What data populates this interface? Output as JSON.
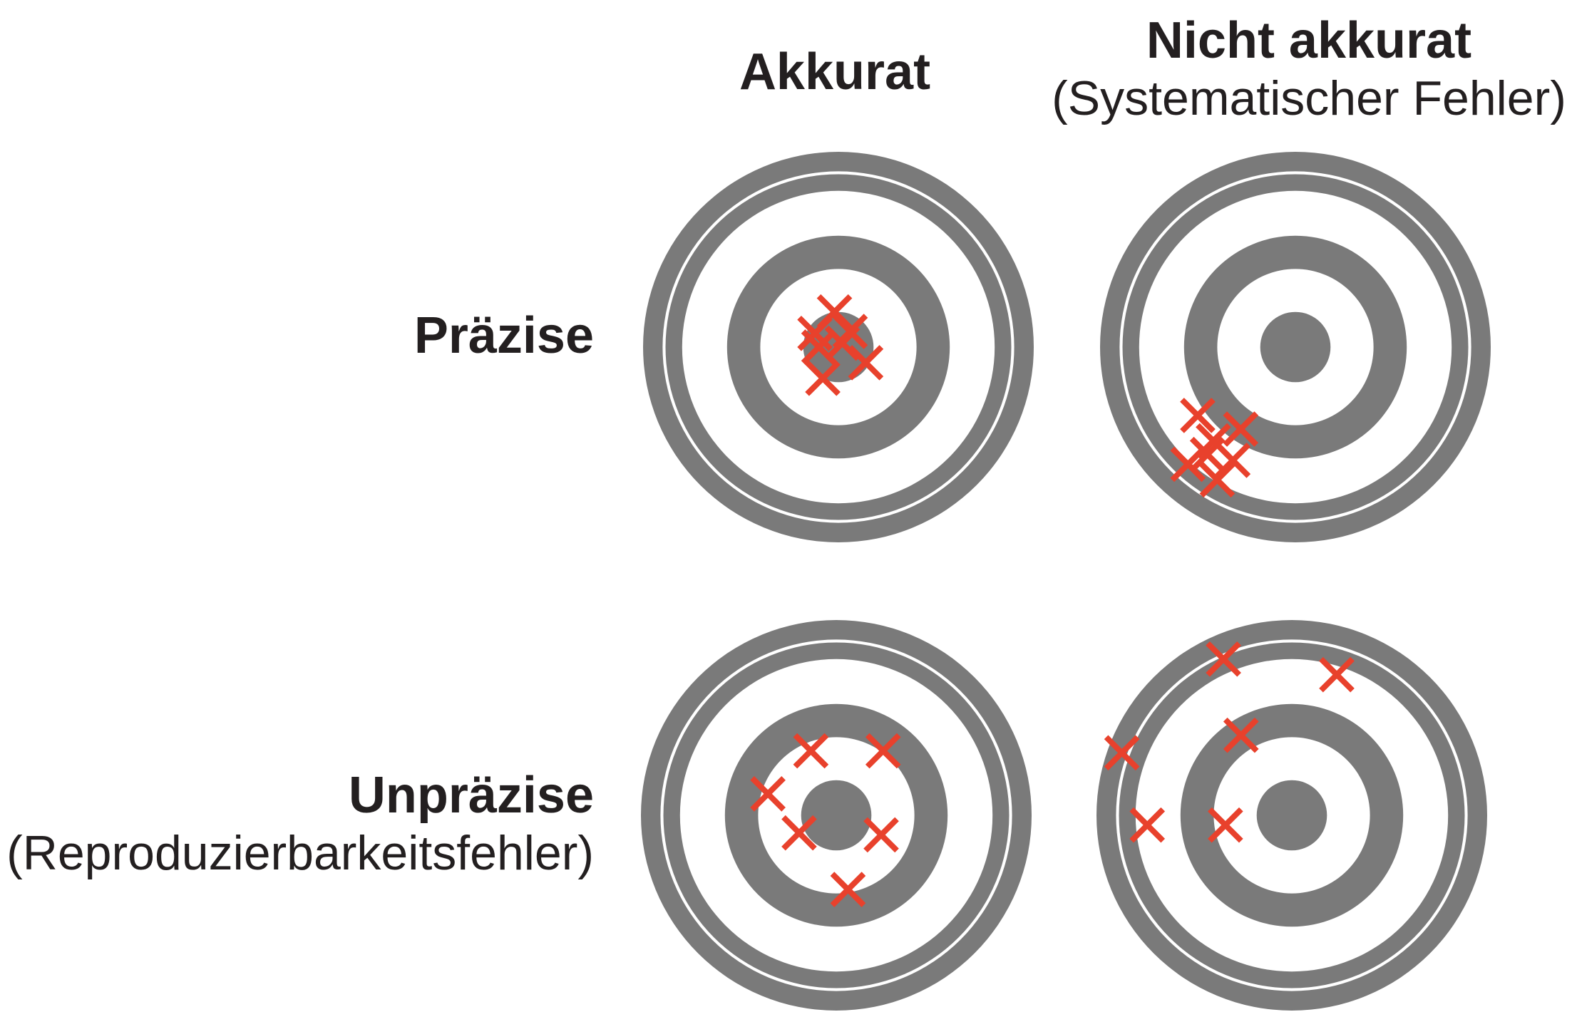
{
  "columns": {
    "accurate": {
      "title": "Akkurat"
    },
    "inaccurate": {
      "title": "Nicht akkurat",
      "subtitle": "(Systematischer Fehler)"
    }
  },
  "rows": {
    "precise": {
      "title": "Präzise"
    },
    "imprecise": {
      "title": "Unpräzise",
      "subtitle": "(Reproduzierbarkeitsfehler)"
    }
  },
  "colors": {
    "ring": "#7a7a7a",
    "mark": "#e8412c",
    "text": "#231f20",
    "background": "#ffffff"
  },
  "targets": [
    {
      "name": "precise-accurate",
      "hits": [
        [
          -0.08,
          -0.16
        ],
        [
          0.14,
          -0.08
        ],
        [
          -0.12,
          0.07
        ],
        [
          0.02,
          0.02
        ],
        [
          -0.02,
          0.18
        ],
        [
          0.06,
          0.08
        ],
        [
          -0.1,
          0.0
        ]
      ]
    },
    {
      "name": "precise-inaccurate",
      "hits": [
        [
          -0.5,
          -0.35
        ],
        [
          -0.28,
          -0.42
        ],
        [
          -0.45,
          -0.55
        ],
        [
          -0.55,
          -0.6
        ],
        [
          -0.4,
          -0.68
        ],
        [
          -0.32,
          -0.58
        ],
        [
          -0.42,
          -0.48
        ]
      ]
    },
    {
      "name": "imprecise-accurate",
      "hits": [
        [
          -0.13,
          0.33
        ],
        [
          0.24,
          0.33
        ],
        [
          -0.35,
          0.11
        ],
        [
          -0.19,
          -0.09
        ],
        [
          0.23,
          -0.1
        ],
        [
          0.06,
          -0.38
        ]
      ]
    },
    {
      "name": "imprecise-inaccurate",
      "hits": [
        [
          -0.35,
          0.8
        ],
        [
          0.23,
          0.72
        ],
        [
          -0.87,
          0.32
        ],
        [
          -0.26,
          0.41
        ],
        [
          -0.74,
          -0.05
        ],
        [
          -0.34,
          -0.05
        ]
      ]
    }
  ]
}
